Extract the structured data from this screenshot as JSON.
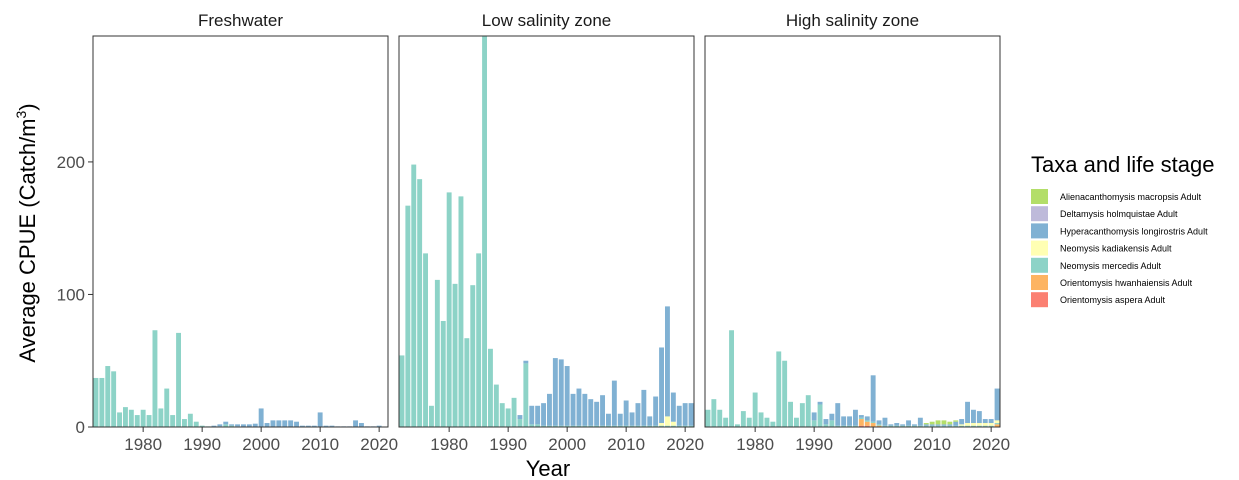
{
  "chart_data": {
    "type": "bar",
    "stacked": true,
    "xlabel": "Year",
    "ylabel": "Average CPUE (Catch/m",
    "ylabel_superscript": "3",
    "ylabel_close": ")",
    "xlim": [
      1972,
      2021
    ],
    "ylim": [
      0,
      295
    ],
    "xticks": [
      1980,
      1990,
      2000,
      2010,
      2020
    ],
    "yticks": [
      0,
      100,
      200
    ],
    "legend": {
      "title": "Taxa and life stage",
      "position": "right",
      "entries": [
        {
          "name": "Alienacanthomysis macropsis Adult",
          "color": "#b3de69"
        },
        {
          "name": "Deltamysis holmquistae Adult",
          "color": "#bebada"
        },
        {
          "name": "Hyperacanthomysis longirostris Adult",
          "color": "#80b1d3"
        },
        {
          "name": "Neomysis kadiakensis Adult",
          "color": "#ffffb3"
        },
        {
          "name": "Neomysis mercedis Adult",
          "color": "#8dd3c7"
        },
        {
          "name": "Orientomysis hwanhaiensis Adult",
          "color": "#fdb462"
        },
        {
          "name": "Orientomysis aspera Adult",
          "color": "#fb8072"
        }
      ]
    },
    "panels": [
      {
        "title": "Freshwater",
        "series": {
          "Neomysis mercedis Adult": {
            "x": [
              1972,
              1973,
              1974,
              1975,
              1976,
              1977,
              1978,
              1979,
              1980,
              1981,
              1982,
              1983,
              1984,
              1985,
              1986,
              1987,
              1988,
              1989,
              1990,
              1991,
              1993,
              1994,
              1995,
              1996
            ],
            "y": [
              37,
              37,
              46,
              42,
              11,
              15,
              13,
              9,
              13,
              9,
              73,
              14,
              29,
              9,
              71,
              6,
              10,
              4,
              1,
              0.5,
              0.5,
              2,
              1,
              0.5
            ]
          },
          "Hyperacanthomysis longirostris Adult": {
            "x": [
              1992,
              1993,
              1994,
              1995,
              1996,
              1997,
              1998,
              1999,
              2000,
              2001,
              2002,
              2003,
              2004,
              2005,
              2006,
              2007,
              2008,
              2009,
              2010,
              2011,
              2012,
              2013,
              2014,
              2015,
              2016,
              2017,
              2018,
              2019,
              2020
            ],
            "y": [
              1,
              1.5,
              2,
              1,
              1.5,
              2,
              2,
              2.5,
              14,
              3,
              5,
              5,
              5,
              5,
              4,
              1,
              1,
              1,
              11,
              1,
              1,
              0.5,
              0.5,
              0.5,
              5,
              3,
              0.5,
              0.5,
              1
            ]
          }
        }
      },
      {
        "title": "Low salinity zone",
        "series": {
          "Neomysis mercedis Adult": {
            "x": [
              1972,
              1973,
              1974,
              1975,
              1976,
              1977,
              1978,
              1979,
              1980,
              1981,
              1982,
              1983,
              1984,
              1985,
              1986,
              1987,
              1988,
              1989,
              1990,
              1991,
              1992,
              1993,
              1994,
              1995,
              1996,
              1997,
              1998,
              1999,
              2000,
              2001,
              2002,
              2003,
              2004,
              2005,
              2006,
              2007,
              2008,
              2009,
              2010,
              2011,
              2012,
              2013,
              2014,
              2015,
              2016,
              2017,
              2018,
              2019,
              2020,
              2021
            ],
            "y": [
              54,
              167,
              198,
              187,
              131,
              16,
              111,
              80,
              177,
              108,
              174,
              67,
              107,
              131,
              295,
              59,
              32,
              18,
              14,
              22,
              6,
              48,
              2,
              2,
              1,
              1,
              1,
              1,
              1,
              1,
              1,
              1,
              1,
              1,
              1,
              1,
              1,
              1,
              1,
              1,
              1,
              1,
              1,
              1,
              1,
              1,
              1,
              1,
              1,
              1
            ]
          },
          "Neomysis kadiakensis Adult": {
            "x": [
              2016,
              2017,
              2018
            ],
            "y": [
              2,
              7,
              3
            ]
          },
          "Hyperacanthomysis longirostris Adult": {
            "x": [
              1992,
              1993,
              1994,
              1995,
              1996,
              1997,
              1998,
              1999,
              2000,
              2001,
              2002,
              2003,
              2004,
              2005,
              2006,
              2007,
              2008,
              2009,
              2010,
              2011,
              2012,
              2013,
              2014,
              2015,
              2016,
              2017,
              2018,
              2019,
              2020,
              2021
            ],
            "y": [
              3,
              2,
              14,
              14,
              17,
              24,
              51,
              50,
              45,
              24,
              28,
              24,
              20,
              18,
              23,
              9,
              34,
              9,
              19,
              10,
              17,
              27,
              7,
              22,
              57,
              83,
              22,
              15,
              17,
              17
            ]
          }
        }
      },
      {
        "title": "High salinity zone",
        "series": {
          "Neomysis mercedis Adult": {
            "x": [
              1972,
              1973,
              1974,
              1975,
              1976,
              1977,
              1978,
              1979,
              1980,
              1981,
              1982,
              1983,
              1984,
              1985,
              1986,
              1987,
              1988,
              1989,
              1990,
              1991,
              1992,
              1993,
              1994,
              1995,
              1996,
              1997,
              1998,
              1999,
              2000,
              2001,
              2002,
              2003,
              2004,
              2005,
              2006,
              2007,
              2008,
              2009,
              2010,
              2011,
              2012,
              2013,
              2014,
              2015,
              2016,
              2017,
              2018,
              2019,
              2020,
              2021
            ],
            "y": [
              13,
              21,
              13,
              7,
              73,
              2,
              12,
              7,
              26,
              11,
              7,
              4,
              57,
              50,
              19,
              7,
              18,
              24,
              5,
              17,
              2,
              5,
              1,
              1,
              1,
              1,
              1,
              1,
              1,
              1,
              1,
              1,
              1,
              1,
              1,
              1,
              1,
              1,
              1,
              1,
              1,
              1,
              1,
              1,
              1,
              1,
              1,
              1,
              1,
              1
            ]
          },
          "Alienacanthomysis macropsis Adult": {
            "x": [
              2009,
              2010,
              2011,
              2012,
              2013,
              2014
            ],
            "y": [
              1,
              2,
              3,
              3,
              2,
              1
            ]
          },
          "Neomysis kadiakensis Adult": {
            "x": [
              2015,
              2016,
              2017,
              2018,
              2019,
              2020,
              2021
            ],
            "y": [
              1,
              2,
              2,
              2,
              2,
              2,
              2
            ]
          },
          "Orientomysis hwanhaiensis Adult": {
            "x": [
              1998,
              1999,
              2000,
              2001,
              2021
            ],
            "y": [
              5,
              3,
              3,
              1,
              2
            ]
          },
          "Orientomysis aspera Adult": {
            "x": [
              1998,
              1999
            ],
            "y": [
              1,
              1
            ]
          },
          "Hyperacanthomysis longirostris Adult": {
            "x": [
              1990,
              1991,
              1992,
              1993,
              1994,
              1995,
              1996,
              1997,
              1998,
              1999,
              2000,
              2001,
              2002,
              2003,
              2004,
              2005,
              2006,
              2007,
              2008,
              2009,
              2010,
              2011,
              2012,
              2013,
              2014,
              2015,
              2016,
              2017,
              2018,
              2019,
              2020,
              2021
            ],
            "y": [
              6,
              2,
              4,
              5,
              17,
              7,
              7,
              12,
              2,
              3,
              35,
              3,
              6,
              1,
              2,
              1,
              4,
              1,
              6,
              1,
              1,
              1,
              1,
              1,
              3,
              4,
              16,
              10,
              9,
              3,
              3,
              24
            ]
          }
        }
      }
    ]
  }
}
